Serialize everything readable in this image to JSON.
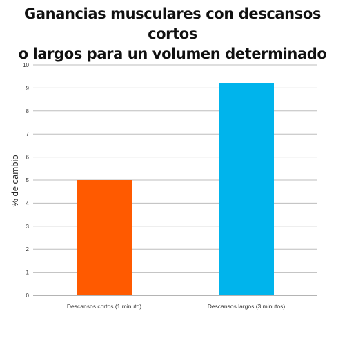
{
  "chart_data": {
    "type": "bar",
    "title_lines": [
      "Ganancias musculares con descansos cortos",
      "o largos para un volumen determinado"
    ],
    "xlabel": "",
    "ylabel": "% de cambio",
    "ylim": [
      0,
      10
    ],
    "yticks": [
      0,
      1,
      2,
      3,
      4,
      5,
      6,
      7,
      8,
      9,
      10
    ],
    "grid": true,
    "legend": "none",
    "categories": [
      "Descansos cortos (1 minuto)",
      "Descansos largos (3 minutos)"
    ],
    "values": [
      5.0,
      9.2
    ],
    "colors": [
      "#ff5a00",
      "#00b4ec"
    ]
  }
}
